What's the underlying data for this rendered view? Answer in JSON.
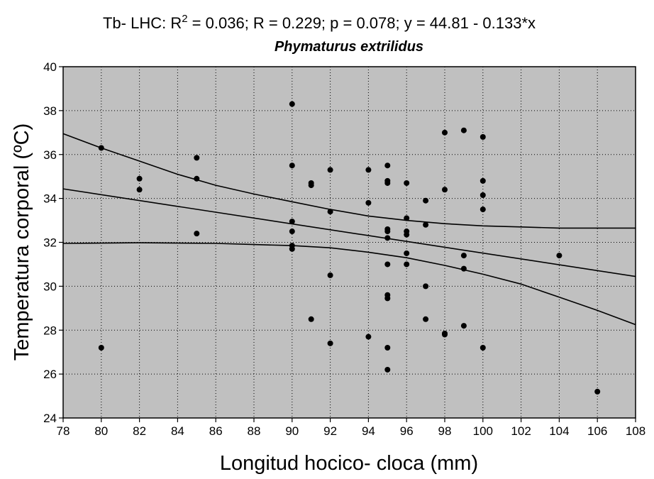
{
  "chart_data": {
    "type": "scatter",
    "title": {
      "prefix": "Tb- LHC: R",
      "sup": "2",
      "rest": " = 0.036; R = 0.229; p = 0.078; y = 44.81 - 0.133*x"
    },
    "subtitle": "Phymaturus extrilidus",
    "xlabel": "Longitud hocico- cloca (mm)",
    "ylabel": "Temperatura corporal (ºC)",
    "xlim": [
      78,
      108
    ],
    "ylim": [
      24,
      40
    ],
    "xticks": [
      78,
      80,
      82,
      84,
      86,
      88,
      90,
      92,
      94,
      96,
      98,
      100,
      102,
      104,
      106,
      108
    ],
    "yticks": [
      24,
      26,
      28,
      30,
      32,
      34,
      36,
      38,
      40
    ],
    "grid": true,
    "background_color": "#c0c0c0",
    "point_color": "#000000",
    "regression": {
      "intercept": 44.81,
      "slope": -0.133
    },
    "confidence_band": {
      "upper": [
        [
          78,
          36.95
        ],
        [
          80,
          36.3
        ],
        [
          82,
          35.7
        ],
        [
          84,
          35.1
        ],
        [
          86,
          34.6
        ],
        [
          88,
          34.2
        ],
        [
          90,
          33.85
        ],
        [
          92,
          33.5
        ],
        [
          94,
          33.2
        ],
        [
          96,
          33.0
        ],
        [
          98,
          32.85
        ],
        [
          100,
          32.75
        ],
        [
          102,
          32.7
        ],
        [
          104,
          32.65
        ],
        [
          106,
          32.65
        ],
        [
          108,
          32.65
        ]
      ],
      "lower": [
        [
          78,
          31.95
        ],
        [
          82,
          31.98
        ],
        [
          86,
          31.95
        ],
        [
          88,
          31.9
        ],
        [
          90,
          31.85
        ],
        [
          92,
          31.75
        ],
        [
          94,
          31.55
        ],
        [
          96,
          31.3
        ],
        [
          98,
          30.95
        ],
        [
          100,
          30.55
        ],
        [
          102,
          30.1
        ],
        [
          104,
          29.5
        ],
        [
          106,
          28.9
        ],
        [
          108,
          28.25
        ]
      ]
    },
    "points": [
      [
        80,
        36.3
      ],
      [
        80,
        27.2
      ],
      [
        82,
        34.9
      ],
      [
        82,
        34.4
      ],
      [
        85,
        35.85
      ],
      [
        85,
        34.9
      ],
      [
        85,
        32.4
      ],
      [
        90,
        38.3
      ],
      [
        90,
        35.5
      ],
      [
        90,
        32.95
      ],
      [
        90,
        32.5
      ],
      [
        90,
        31.85
      ],
      [
        90,
        31.7
      ],
      [
        91,
        34.7
      ],
      [
        91,
        34.6
      ],
      [
        91,
        28.5
      ],
      [
        92,
        35.3
      ],
      [
        92,
        33.4
      ],
      [
        92,
        30.5
      ],
      [
        92,
        27.4
      ],
      [
        94,
        35.3
      ],
      [
        94,
        33.8
      ],
      [
        94,
        27.7
      ],
      [
        95,
        35.5
      ],
      [
        95,
        34.8
      ],
      [
        95,
        34.7
      ],
      [
        95,
        32.6
      ],
      [
        95,
        32.5
      ],
      [
        95,
        32.2
      ],
      [
        95,
        31.0
      ],
      [
        95,
        29.6
      ],
      [
        95,
        29.45
      ],
      [
        95,
        27.2
      ],
      [
        95,
        26.2
      ],
      [
        96,
        34.7
      ],
      [
        96,
        33.1
      ],
      [
        96,
        32.5
      ],
      [
        96,
        32.35
      ],
      [
        96,
        31.5
      ],
      [
        96,
        31.0
      ],
      [
        97,
        33.9
      ],
      [
        97,
        32.8
      ],
      [
        97,
        30.0
      ],
      [
        97,
        28.5
      ],
      [
        98,
        37.0
      ],
      [
        98,
        34.4
      ],
      [
        98,
        27.85
      ],
      [
        98,
        27.8
      ],
      [
        99,
        37.1
      ],
      [
        99,
        31.4
      ],
      [
        99,
        30.8
      ],
      [
        99,
        28.2
      ],
      [
        100,
        36.8
      ],
      [
        100,
        34.8
      ],
      [
        100,
        34.15
      ],
      [
        100,
        33.5
      ],
      [
        100,
        27.2
      ],
      [
        104,
        31.4
      ],
      [
        106,
        25.2
      ]
    ]
  }
}
